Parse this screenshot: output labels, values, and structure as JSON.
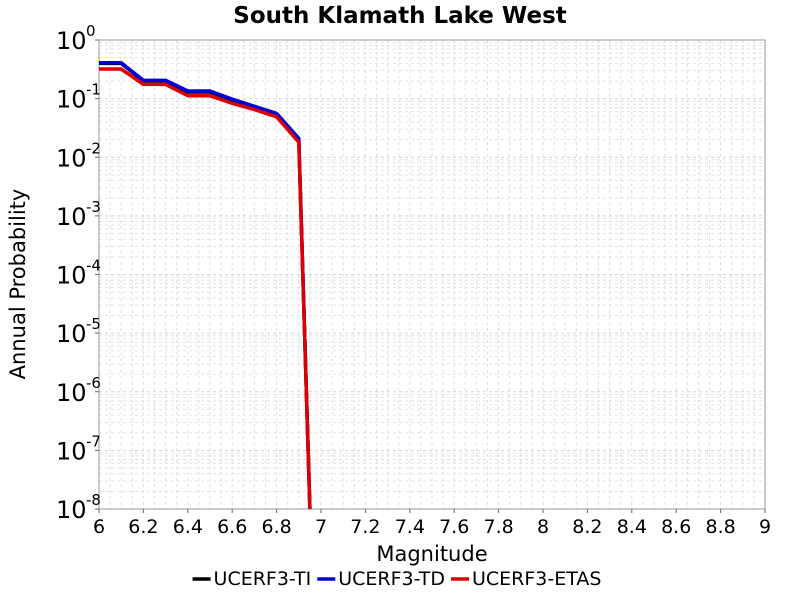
{
  "chart_data": {
    "type": "line",
    "title": "South Klamath Lake West",
    "xlabel": "Magnitude",
    "ylabel": "Annual Probability",
    "xlim": [
      6,
      9
    ],
    "ylim": [
      1e-08,
      1
    ],
    "yscale": "log",
    "grid": true,
    "legend_position": "bottom",
    "x_ticks": [
      "6",
      "6.2",
      "6.4",
      "6.6",
      "6.8",
      "7",
      "7.2",
      "7.4",
      "7.6",
      "7.8",
      "8",
      "8.2",
      "8.4",
      "8.6",
      "8.8",
      "9"
    ],
    "y_ticks": [
      {
        "base": "10",
        "exp": "0",
        "value": 1
      },
      {
        "base": "10",
        "exp": "-1",
        "value": 0.1
      },
      {
        "base": "10",
        "exp": "-2",
        "value": 0.01
      },
      {
        "base": "10",
        "exp": "-3",
        "value": 0.001
      },
      {
        "base": "10",
        "exp": "-4",
        "value": 0.0001
      },
      {
        "base": "10",
        "exp": "-5",
        "value": 1e-05
      },
      {
        "base": "10",
        "exp": "-6",
        "value": 1e-06
      },
      {
        "base": "10",
        "exp": "-7",
        "value": 1e-07
      },
      {
        "base": "10",
        "exp": "-8",
        "value": 1e-08
      }
    ],
    "series": [
      {
        "name": "UCERF3-TI",
        "color": "#000000",
        "x": [
          6.0,
          6.1,
          6.2,
          6.3,
          6.4,
          6.5,
          6.6,
          6.7,
          6.8,
          6.9,
          6.95
        ],
        "y": [
          0.4,
          0.4,
          0.2,
          0.2,
          0.13,
          0.13,
          0.095,
          0.072,
          0.054,
          0.02,
          1e-08
        ]
      },
      {
        "name": "UCERF3-TD",
        "color": "#0000dd",
        "x": [
          6.0,
          6.1,
          6.2,
          6.3,
          6.4,
          6.5,
          6.6,
          6.7,
          6.8,
          6.9,
          6.95
        ],
        "y": [
          0.41,
          0.41,
          0.205,
          0.205,
          0.135,
          0.135,
          0.098,
          0.074,
          0.056,
          0.021,
          1e-08
        ]
      },
      {
        "name": "UCERF3-ETAS",
        "color": "#dd0000",
        "x": [
          6.0,
          6.1,
          6.2,
          6.3,
          6.4,
          6.5,
          6.6,
          6.7,
          6.8,
          6.9,
          6.95
        ],
        "y": [
          0.32,
          0.32,
          0.175,
          0.175,
          0.112,
          0.112,
          0.083,
          0.065,
          0.049,
          0.018,
          1e-08
        ]
      }
    ]
  }
}
